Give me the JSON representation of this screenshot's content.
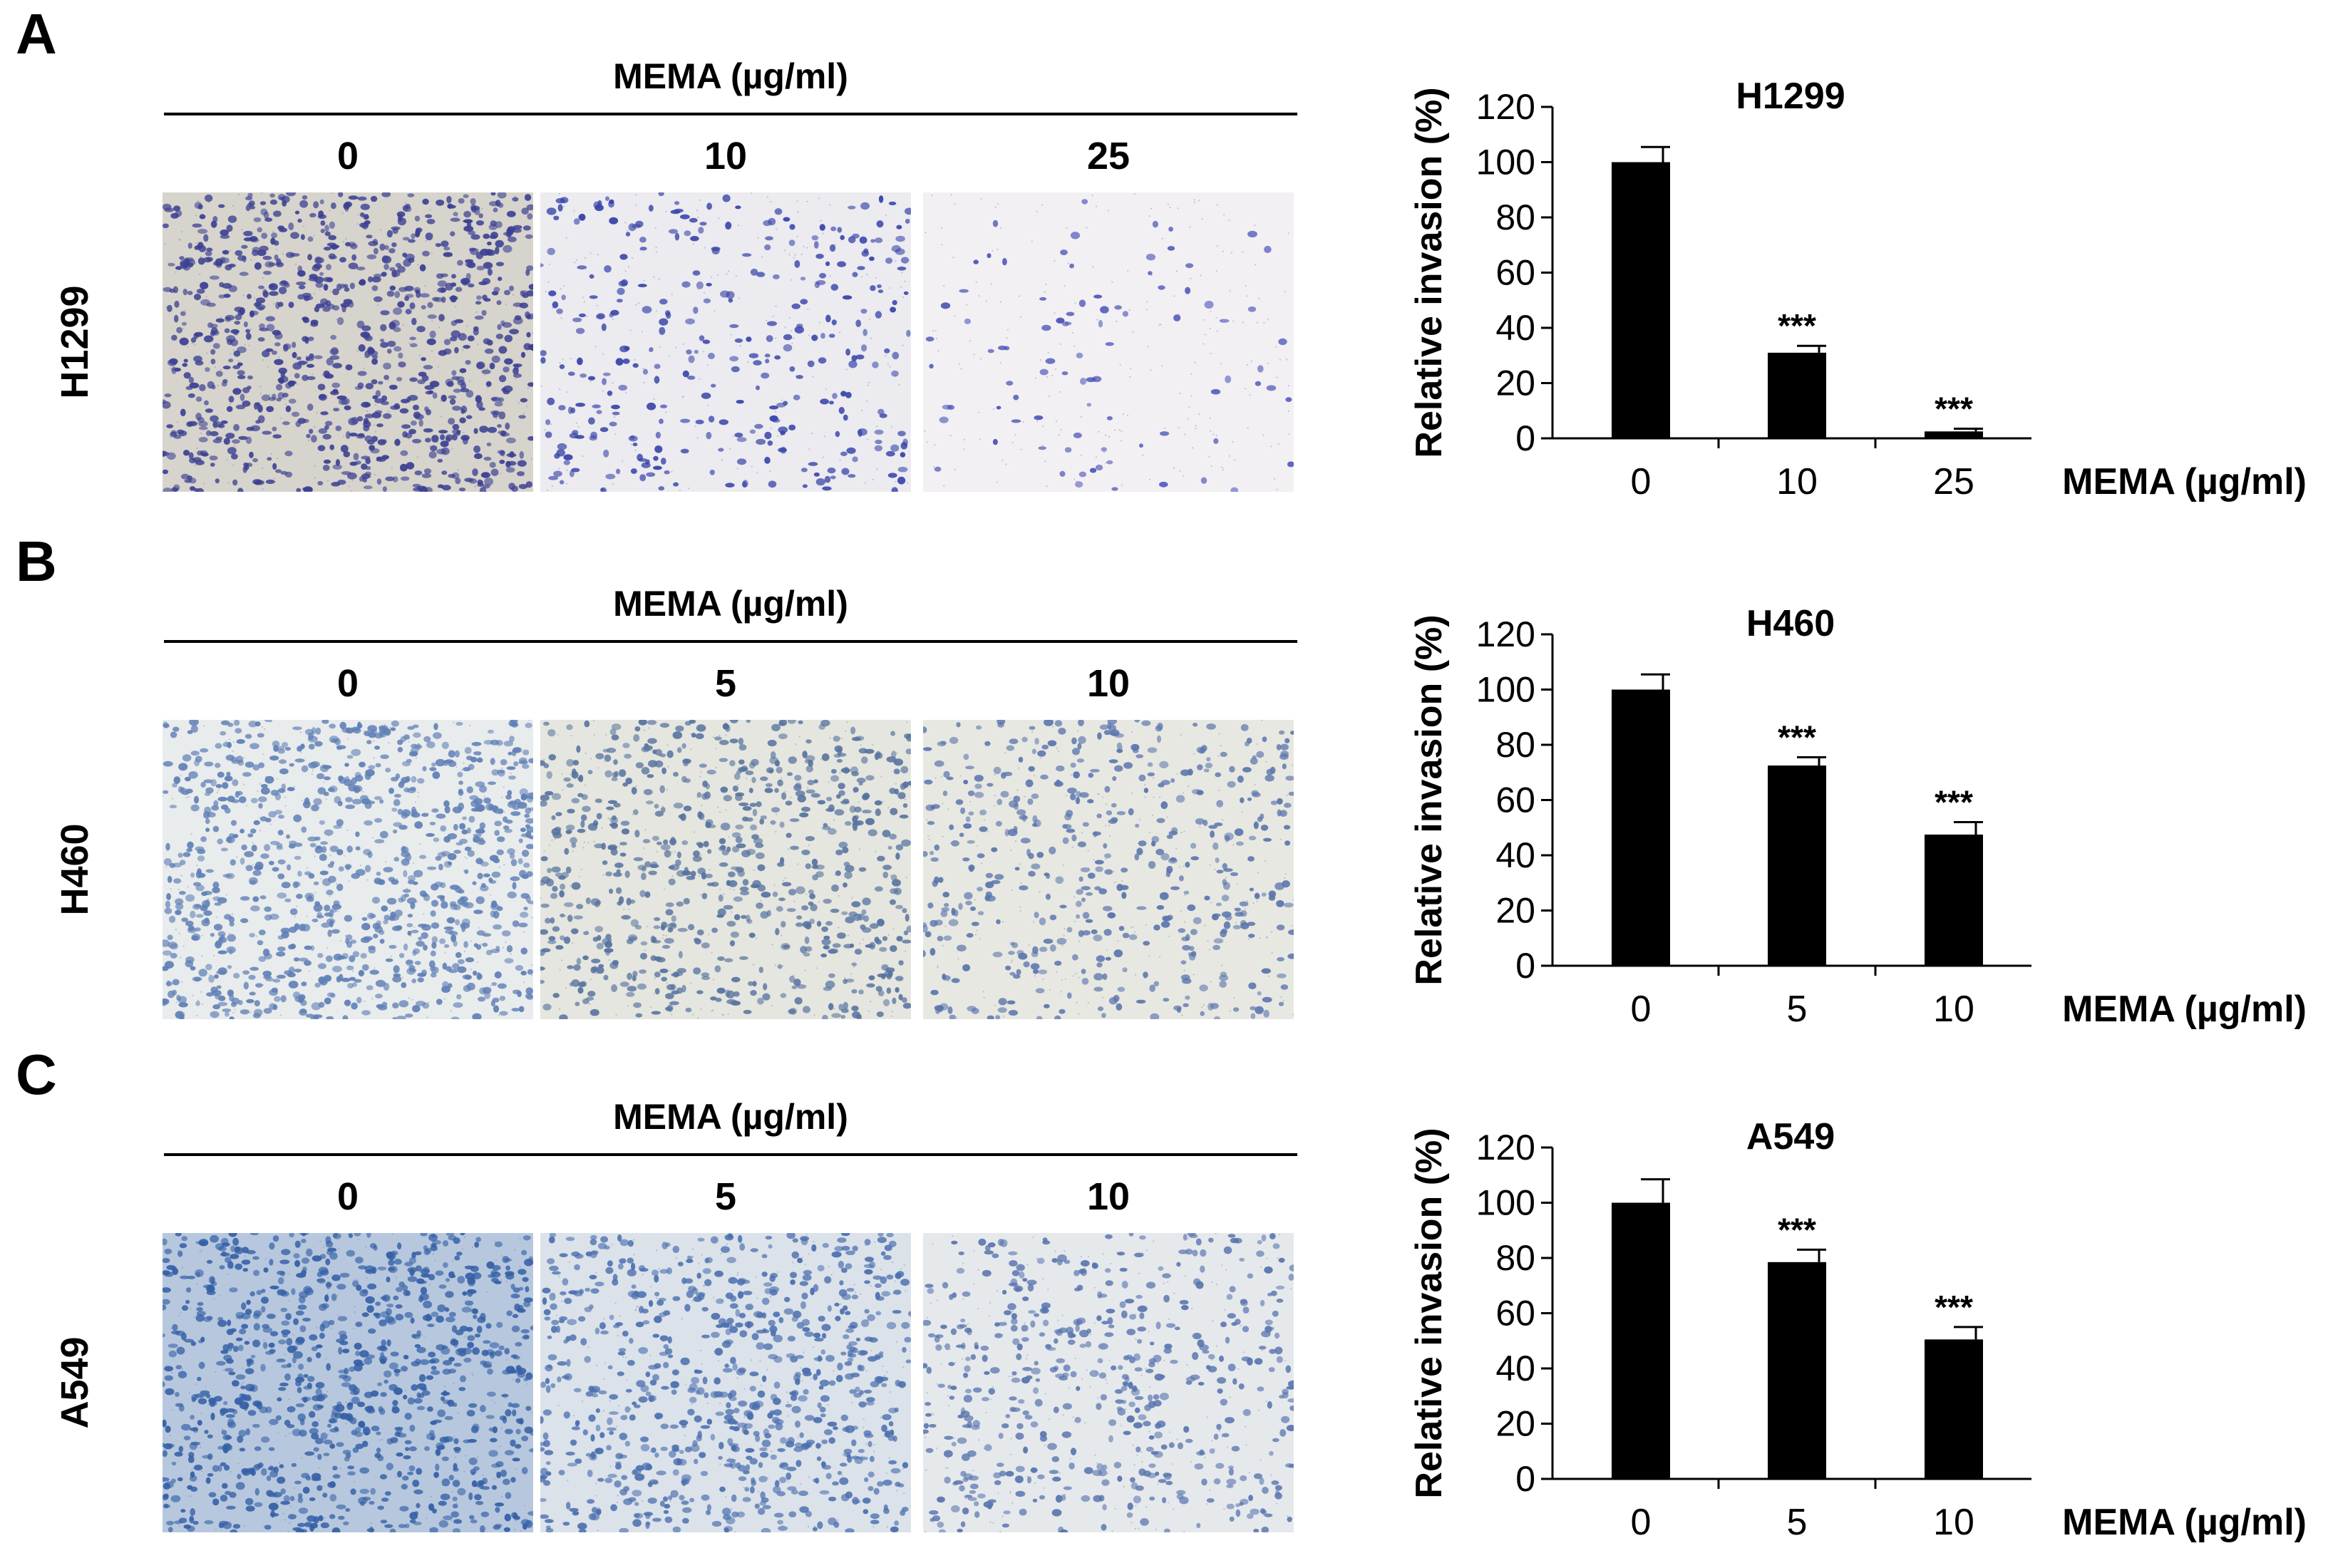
{
  "panels": [
    {
      "letter": "A",
      "cell_line": "H1299",
      "compound_label": "MEMA (µg/ml)",
      "doses": [
        "0",
        "10",
        "25"
      ],
      "micrograph_density": [
        1.0,
        0.31,
        0.03
      ],
      "stain_colors": [
        "#3b3f92",
        "#3743a8",
        "#4a52b8"
      ],
      "background_colors": [
        "#d6d4cc",
        "#ecebf0",
        "#f2f0f3"
      ]
    },
    {
      "letter": "B",
      "cell_line": "H460",
      "compound_label": "MEMA (µg/ml)",
      "doses": [
        "0",
        "5",
        "10"
      ],
      "micrograph_density": [
        1.0,
        0.73,
        0.48
      ],
      "stain_colors": [
        "#5f7fb6",
        "#56729f",
        "#5a75ad"
      ],
      "background_colors": [
        "#e9ecec",
        "#e5e6df",
        "#e8e8e2"
      ]
    },
    {
      "letter": "C",
      "cell_line": "A549",
      "compound_label": "MEMA (µg/ml)",
      "doses": [
        "0",
        "5",
        "10"
      ],
      "micrograph_density": [
        1.0,
        0.78,
        0.5
      ],
      "stain_colors": [
        "#3560a6",
        "#4b6fae",
        "#5874ae"
      ],
      "background_colors": [
        "#b7c8de",
        "#dbe2ea",
        "#e6e9ec"
      ]
    }
  ],
  "chart_data": [
    {
      "type": "bar",
      "title": "H1299",
      "categories": [
        "0",
        "10",
        "25"
      ],
      "values": [
        100,
        31,
        2.5
      ],
      "errors": [
        5.5,
        2.5,
        1.0
      ],
      "significance": [
        "",
        "***",
        "***"
      ],
      "xlabel": "MEMA (µg/ml)",
      "ylabel": "Relative invasion (%)",
      "ylim": [
        0,
        120
      ],
      "yticks": [
        0,
        20,
        40,
        60,
        80,
        100,
        120
      ],
      "bar_color": "#000000",
      "grid": false
    },
    {
      "type": "bar",
      "title": "H460",
      "categories": [
        "0",
        "5",
        "10"
      ],
      "values": [
        100,
        72.5,
        47.5
      ],
      "errors": [
        5.5,
        3.0,
        4.5
      ],
      "significance": [
        "",
        "***",
        "***"
      ],
      "xlabel": "MEMA (µg/ml)",
      "ylabel": "Relative invasion (%)",
      "ylim": [
        0,
        120
      ],
      "yticks": [
        0,
        20,
        40,
        60,
        80,
        100,
        120
      ],
      "bar_color": "#000000",
      "grid": false
    },
    {
      "type": "bar",
      "title": "A549",
      "categories": [
        "0",
        "5",
        "10"
      ],
      "values": [
        100,
        78.5,
        50.5
      ],
      "errors": [
        8.5,
        4.5,
        4.5
      ],
      "significance": [
        "",
        "***",
        "***"
      ],
      "xlabel": "MEMA (µg/ml)",
      "ylabel": "Relative invasion (%)",
      "ylim": [
        0,
        120
      ],
      "yticks": [
        0,
        20,
        40,
        60,
        80,
        100,
        120
      ],
      "bar_color": "#000000",
      "grid": false
    }
  ]
}
